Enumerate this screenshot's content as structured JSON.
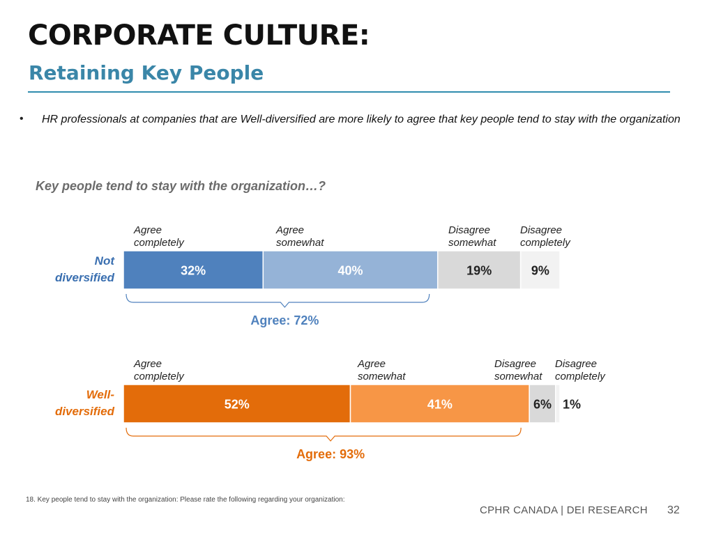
{
  "header": {
    "title": "CORPORATE CULTURE:",
    "subtitle": "Retaining Key People"
  },
  "bullet": "HR professionals at companies that are Well-diversified are more likely to agree that key people tend to stay with the organization",
  "question": "Key people tend to stay with the organization…?",
  "chart_data": {
    "type": "bar",
    "orientation": "horizontal",
    "stacked": true,
    "title": "Key people tend to stay with the organization…?",
    "segments": [
      {
        "line1": "Agree",
        "line2": "completely"
      },
      {
        "line1": "Agree",
        "line2": "somewhat"
      },
      {
        "line1": "Disagree",
        "line2": "somewhat"
      },
      {
        "line1": "Disagree",
        "line2": "completely"
      }
    ],
    "series": [
      {
        "line1": "Not",
        "line2": "diversified",
        "values": [
          32,
          40,
          19,
          9
        ],
        "value_labels": [
          "32%",
          "40%",
          "19%",
          "9%"
        ],
        "colors": [
          "#4f81bd",
          "#95b3d7",
          "#d9d9d9",
          "#f2f2f2"
        ],
        "label_colors": [
          "#ffffff",
          "#ffffff",
          "#222222",
          "#222222"
        ],
        "label_color": "#3a6fb0",
        "agree_total": "Agree: 72%",
        "agree_color": "#4f81bd"
      },
      {
        "line1": "Well-",
        "line2": "diversified",
        "values": [
          52,
          41,
          6,
          1
        ],
        "value_labels": [
          "52%",
          "41%",
          "6%",
          "1%"
        ],
        "colors": [
          "#e36c0a",
          "#f79646",
          "#d9d9d9",
          "#f2f2f2"
        ],
        "label_colors": [
          "#ffffff",
          "#ffffff",
          "#222222",
          "#222222"
        ],
        "label_color": "#e36c0a",
        "agree_total": "Agree: 93%",
        "agree_color": "#e36c0a"
      }
    ]
  },
  "footnote": "18.  Key people tend to stay with the organization: Please rate the following regarding your organization:",
  "footer": {
    "brand": "CPHR CANADA  |  DEI RESEARCH",
    "page": "32"
  }
}
